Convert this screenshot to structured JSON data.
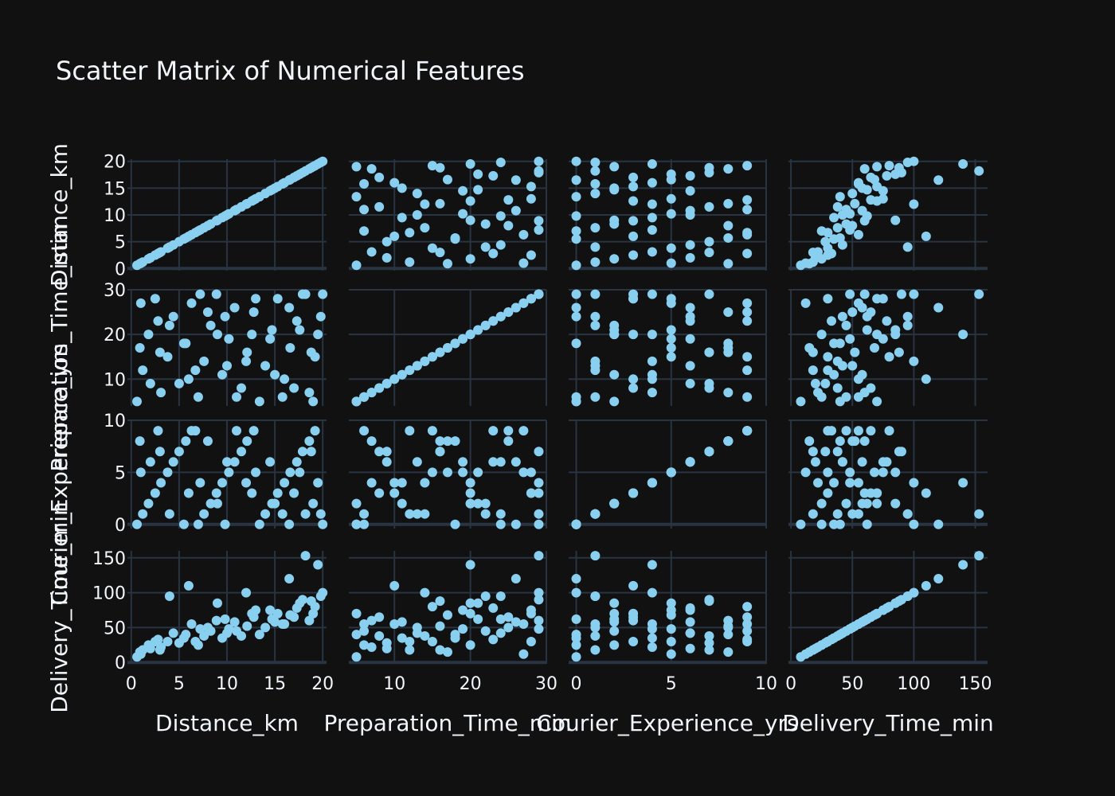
{
  "chart_data": {
    "type": "scatter_matrix",
    "title": "Scatter Matrix of Numerical Features",
    "marker_color": "#89cff0",
    "background": "#111111",
    "grid_color": "#283442",
    "text_color": "#f2f5fa",
    "dimensions": [
      {
        "name": "Distance_km",
        "range": [
          -0.4,
          20.4
        ],
        "ticks": [
          0,
          5,
          10,
          15,
          20
        ]
      },
      {
        "name": "Preparation_Time_min",
        "range": [
          4.0,
          30.0
        ],
        "ticks": [
          10,
          20,
          30
        ]
      },
      {
        "name": "Courier_Experience_yrs",
        "range": [
          -0.4,
          10.0
        ],
        "ticks": [
          0,
          5,
          10
        ]
      },
      {
        "name": "Delivery_Time_min",
        "range": [
          -2,
          160
        ],
        "ticks": [
          0,
          50,
          100,
          150
        ]
      }
    ],
    "row_ticks": [
      [
        0,
        5,
        10,
        15,
        20
      ],
      [
        10,
        20,
        30
      ],
      [
        0,
        5,
        10
      ],
      [
        0,
        50,
        100,
        150
      ]
    ],
    "points": [
      [
        0.6,
        5,
        0,
        8
      ],
      [
        1.2,
        12,
        1,
        18
      ],
      [
        1.8,
        20,
        2,
        25
      ],
      [
        2.5,
        28,
        3,
        30
      ],
      [
        3.1,
        7,
        4,
        22
      ],
      [
        3.8,
        15,
        5,
        30
      ],
      [
        4.4,
        24,
        6,
        42
      ],
      [
        5.0,
        9,
        7,
        28
      ],
      [
        5.7,
        18,
        8,
        40
      ],
      [
        6.3,
        27,
        9,
        55
      ],
      [
        7.0,
        6,
        0,
        25
      ],
      [
        7.6,
        14,
        1,
        38
      ],
      [
        8.3,
        22,
        2,
        45
      ],
      [
        8.9,
        29,
        3,
        60
      ],
      [
        9.5,
        11,
        4,
        35
      ],
      [
        10.2,
        19,
        5,
        48
      ],
      [
        10.8,
        26,
        6,
        58
      ],
      [
        11.5,
        8,
        7,
        38
      ],
      [
        12.1,
        16,
        8,
        52
      ],
      [
        12.8,
        25,
        9,
        65
      ],
      [
        13.4,
        5,
        0,
        40
      ],
      [
        14.0,
        13,
        1,
        50
      ],
      [
        14.7,
        21,
        2,
        62
      ],
      [
        15.3,
        28,
        3,
        70
      ],
      [
        16.0,
        10,
        4,
        55
      ],
      [
        16.6,
        17,
        5,
        68
      ],
      [
        17.3,
        23,
        6,
        78
      ],
      [
        17.9,
        29,
        7,
        90
      ],
      [
        18.6,
        7,
        8,
        60
      ],
      [
        19.2,
        15,
        9,
        80
      ],
      [
        19.8,
        24,
        1,
        95
      ],
      [
        20.0,
        29,
        0,
        100
      ],
      [
        4.0,
        22,
        1,
        95
      ],
      [
        6.0,
        10,
        3,
        110
      ],
      [
        9.0,
        20,
        2,
        85
      ],
      [
        12.0,
        14,
        4,
        100
      ],
      [
        14.5,
        19,
        6,
        75
      ],
      [
        16.5,
        26,
        0,
        120
      ],
      [
        18.2,
        29,
        1,
        153
      ],
      [
        19.5,
        20,
        4,
        140
      ],
      [
        1.0,
        27,
        5,
        12
      ],
      [
        2.0,
        9,
        6,
        20
      ],
      [
        3.0,
        16,
        7,
        18
      ],
      [
        11.0,
        6,
        9,
        45
      ],
      [
        15.0,
        11,
        2,
        58
      ],
      [
        8.0,
        25,
        8,
        50
      ],
      [
        5.5,
        18,
        0,
        35
      ],
      [
        13.0,
        28,
        5,
        75
      ],
      [
        17.0,
        8,
        3,
        65
      ],
      [
        18.8,
        16,
        7,
        88
      ],
      [
        2.8,
        23,
        9,
        33
      ],
      [
        7.2,
        29,
        4,
        48
      ],
      [
        10.0,
        13,
        6,
        42
      ],
      [
        19.0,
        5,
        2,
        70
      ],
      [
        0.9,
        17,
        8,
        15
      ],
      [
        6.7,
        12,
        9,
        30
      ],
      [
        9.8,
        24,
        0,
        62
      ],
      [
        12.6,
        20,
        3,
        70
      ],
      [
        15.8,
        6,
        1,
        55
      ],
      [
        17.6,
        21,
        5,
        85
      ]
    ]
  }
}
